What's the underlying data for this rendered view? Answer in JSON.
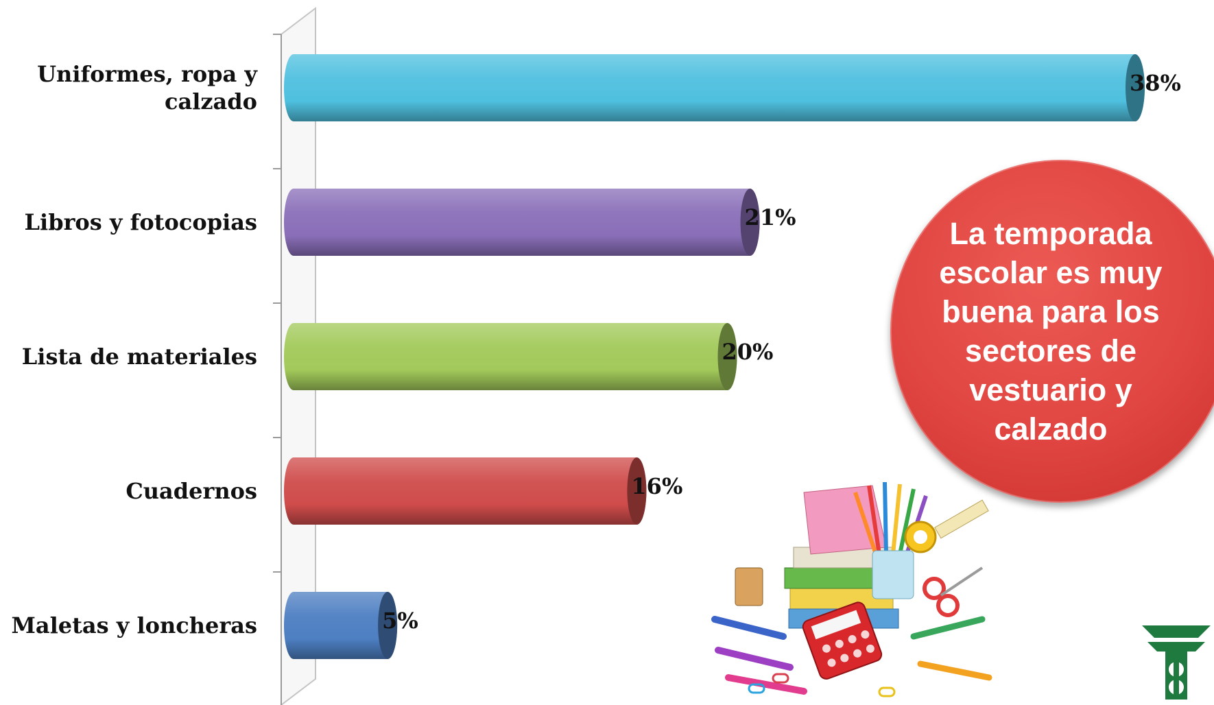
{
  "chart_data": {
    "type": "bar",
    "orientation": "horizontal",
    "categories": [
      "Uniformes, ropa y calzado",
      "Libros y fotocopias",
      "Lista de materiales",
      "Cuadernos",
      "Maletas y loncheras"
    ],
    "values": [
      38,
      21,
      20,
      16,
      5
    ],
    "value_labels": [
      "38%",
      "21%",
      "20%",
      "16%",
      "5%"
    ],
    "colors": [
      "#4fc0df",
      "#8a6fb8",
      "#a2c95a",
      "#cf4c4b",
      "#4d7fc2"
    ],
    "xlim": [
      0,
      38
    ],
    "style": "3d-cylinder",
    "grid": false,
    "legend": "none"
  },
  "callout": {
    "text": "La temporada escolar es muy buena para los sectores de vestuario y calzado",
    "color": "#e04541"
  },
  "images": {
    "supplies": "school-supplies-illustration",
    "logo": "green-logo-icon"
  }
}
